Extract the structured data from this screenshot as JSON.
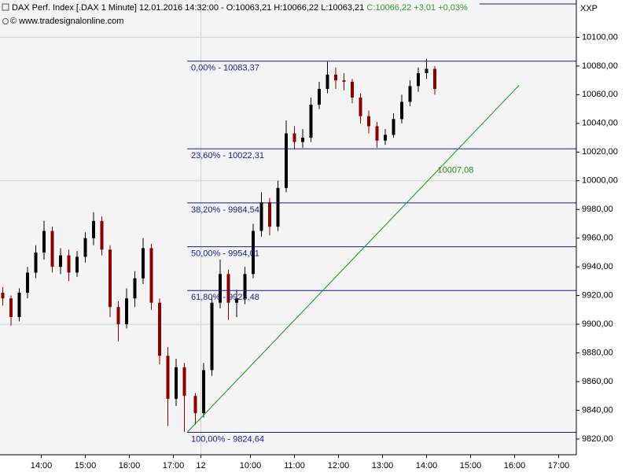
{
  "chart_data": {
    "type": "candlestick",
    "title": "DAX Perf. Index [.DAX  1 Minute] 12.01.2016 14:32:00 - O:10063,21 H:10066,22 L:10063,21",
    "title_change": "C:10066,22 +3,01 +0,03%",
    "subtitle": "© www.tradesignalonline.com",
    "axis_name": "XXP",
    "up_color": "#000000",
    "down_color": "#8b0000",
    "change_color": "#2e9b2e",
    "grid": true,
    "xlim": [
      0,
      209.43
    ],
    "ylim": [
      9809,
      10126
    ],
    "xticks": [
      {
        "value": 15,
        "label": "14:00"
      },
      {
        "value": 31,
        "label": "15:00"
      },
      {
        "value": 47,
        "label": "16:00"
      },
      {
        "value": 63,
        "label": "17:00"
      },
      {
        "value": 73,
        "label": "12"
      },
      {
        "value": 91,
        "label": "10:00"
      },
      {
        "value": 107,
        "label": "11:00"
      },
      {
        "value": 123,
        "label": "12:00"
      },
      {
        "value": 139,
        "label": "13:00"
      },
      {
        "value": 155,
        "label": "14:00"
      },
      {
        "value": 171,
        "label": "15:00"
      },
      {
        "value": 187,
        "label": "16:00"
      },
      {
        "value": 203,
        "label": "17:00"
      }
    ],
    "yticks": [
      {
        "value": 10100,
        "label": "10100,00"
      },
      {
        "value": 10080,
        "label": "10080,00"
      },
      {
        "value": 10060,
        "label": "10060,00"
      },
      {
        "value": 10040,
        "label": "10040,00"
      },
      {
        "value": 10020,
        "label": "10020,00"
      },
      {
        "value": 10000,
        "label": "10000,00"
      },
      {
        "value": 9980,
        "label": "9980,00"
      },
      {
        "value": 9960,
        "label": "9960,00"
      },
      {
        "value": 9940,
        "label": "9940,00"
      },
      {
        "value": 9920,
        "label": "9920,00"
      },
      {
        "value": 9900,
        "label": "9900,00"
      },
      {
        "value": 9880,
        "label": "9880,00"
      },
      {
        "value": 9860,
        "label": "9860,00"
      },
      {
        "value": 9840,
        "label": "9840,00"
      },
      {
        "value": 9820,
        "label": "9820,00"
      }
    ],
    "grid_values": [
      10100,
      10000,
      9900
    ],
    "x": [
      1,
      4,
      7,
      10,
      13,
      16,
      19,
      22,
      25,
      28,
      31,
      34,
      37,
      40,
      43,
      46,
      49,
      52,
      55,
      58,
      61,
      64,
      67,
      71,
      74,
      77,
      80,
      83,
      86,
      89,
      92,
      95,
      98,
      101,
      104,
      107,
      110,
      113,
      116,
      119,
      122,
      125,
      128,
      131,
      134,
      137,
      140,
      143,
      146,
      149,
      152,
      155,
      158
    ],
    "open": [
      9922,
      9918,
      9905,
      9922,
      9936,
      9950,
      9965,
      9940,
      9948,
      9936,
      9947,
      9960,
      9972,
      9952,
      9912,
      9900,
      9918,
      9932,
      9953,
      9915,
      9878,
      9848,
      9870,
      9850,
      9838,
      9868,
      9915,
      9935,
      9915,
      9918,
      9935,
      9965,
      9985,
      9968,
      9995,
      10033,
      10027,
      10030,
      10053,
      10064,
      10074,
      10070,
      10069,
      10058,
      10045,
      10038,
      10028,
      10032,
      10043,
      10055,
      10066,
      10075,
      10078
    ],
    "high": [
      9926,
      9920,
      9925,
      9940,
      9955,
      9972,
      9968,
      9953,
      9952,
      9951,
      9964,
      9978,
      9975,
      9955,
      9916,
      9925,
      9937,
      9960,
      9956,
      9918,
      9884,
      9876,
      9873,
      9852,
      9873,
      9920,
      9945,
      9938,
      9924,
      9940,
      9970,
      9992,
      9988,
      10000,
      10042,
      10038,
      10036,
      10058,
      10069,
      10083,
      10079,
      10075,
      10071,
      10061,
      10049,
      10041,
      10036,
      10047,
      10060,
      10070,
      10079,
      10085,
      10080
    ],
    "low": [
      9913,
      9899,
      9902,
      9918,
      9932,
      9945,
      9936,
      9935,
      9930,
      9933,
      9943,
      9955,
      9948,
      9905,
      9888,
      9897,
      9912,
      9928,
      9910,
      9872,
      9829,
      9843,
      9825,
      9830,
      9835,
      9864,
      9911,
      9903,
      9905,
      9914,
      9932,
      9961,
      9962,
      9965,
      9992,
      10022,
      10023,
      10027,
      10050,
      10061,
      10064,
      10063,
      10054,
      10040,
      10033,
      10023,
      10025,
      10030,
      10040,
      10052,
      10062,
      10071,
      10060
    ],
    "close": [
      9918,
      9905,
      9922,
      9936,
      9950,
      9965,
      9940,
      9948,
      9936,
      9947,
      9960,
      9972,
      9952,
      9912,
      9900,
      9918,
      9932,
      9953,
      9915,
      9878,
      9848,
      9870,
      9850,
      9838,
      9868,
      9915,
      9935,
      9915,
      9918,
      9935,
      9965,
      9985,
      9968,
      9995,
      10033,
      10027,
      10030,
      10053,
      10064,
      10074,
      10070,
      10069,
      10058,
      10045,
      10038,
      10028,
      10032,
      10043,
      10055,
      10066,
      10075,
      10078,
      10064
    ],
    "fib_color": "#1a1a8c",
    "fib_start_x": 68,
    "fib_levels": [
      {
        "value": 10083.37,
        "label": "0,00% - 10083,37"
      },
      {
        "value": 10022.31,
        "label": "23,60% - 10022,31"
      },
      {
        "value": 9984.54,
        "label": "38,20% - 9984,54"
      },
      {
        "value": 9954.01,
        "label": "50,00% - 9954,01"
      },
      {
        "value": 9923.48,
        "label": "61,80% - 9923,48"
      },
      {
        "value": 9824.64,
        "label": "100,00% - 9824,64"
      }
    ],
    "trendline": {
      "color": "#1f8a1f",
      "x": [
        68,
        188.6
      ],
      "values": [
        9824.64,
        10066.5
      ],
      "label": "10007,08",
      "label_x": 159,
      "label_value": 10007.08
    }
  }
}
